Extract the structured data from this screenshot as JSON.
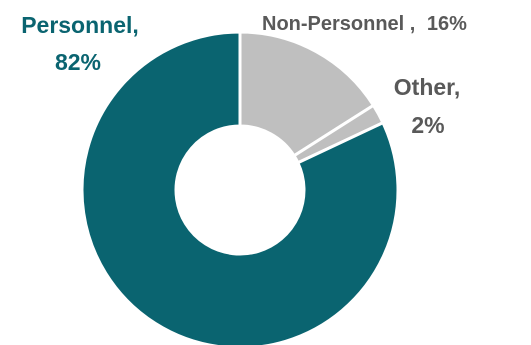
{
  "chart_data": {
    "type": "pie",
    "style": "donut",
    "categories": [
      "Personnel",
      "Non-Personnel",
      "Other"
    ],
    "values": [
      82,
      16,
      2
    ],
    "labels": [
      {
        "name": "Personnel,",
        "value": "82%"
      },
      {
        "name": "Non-Personnel ,",
        "value": "16%"
      },
      {
        "name": "Other,",
        "value": "2%"
      }
    ],
    "colors": [
      "#0a6470",
      "#bfbfbf",
      "#bfbfbf"
    ],
    "label_colors": [
      "#0a6470",
      "#595959",
      "#595959"
    ],
    "start_angle_deg": 0,
    "direction": "clockwise",
    "legend": "none"
  }
}
